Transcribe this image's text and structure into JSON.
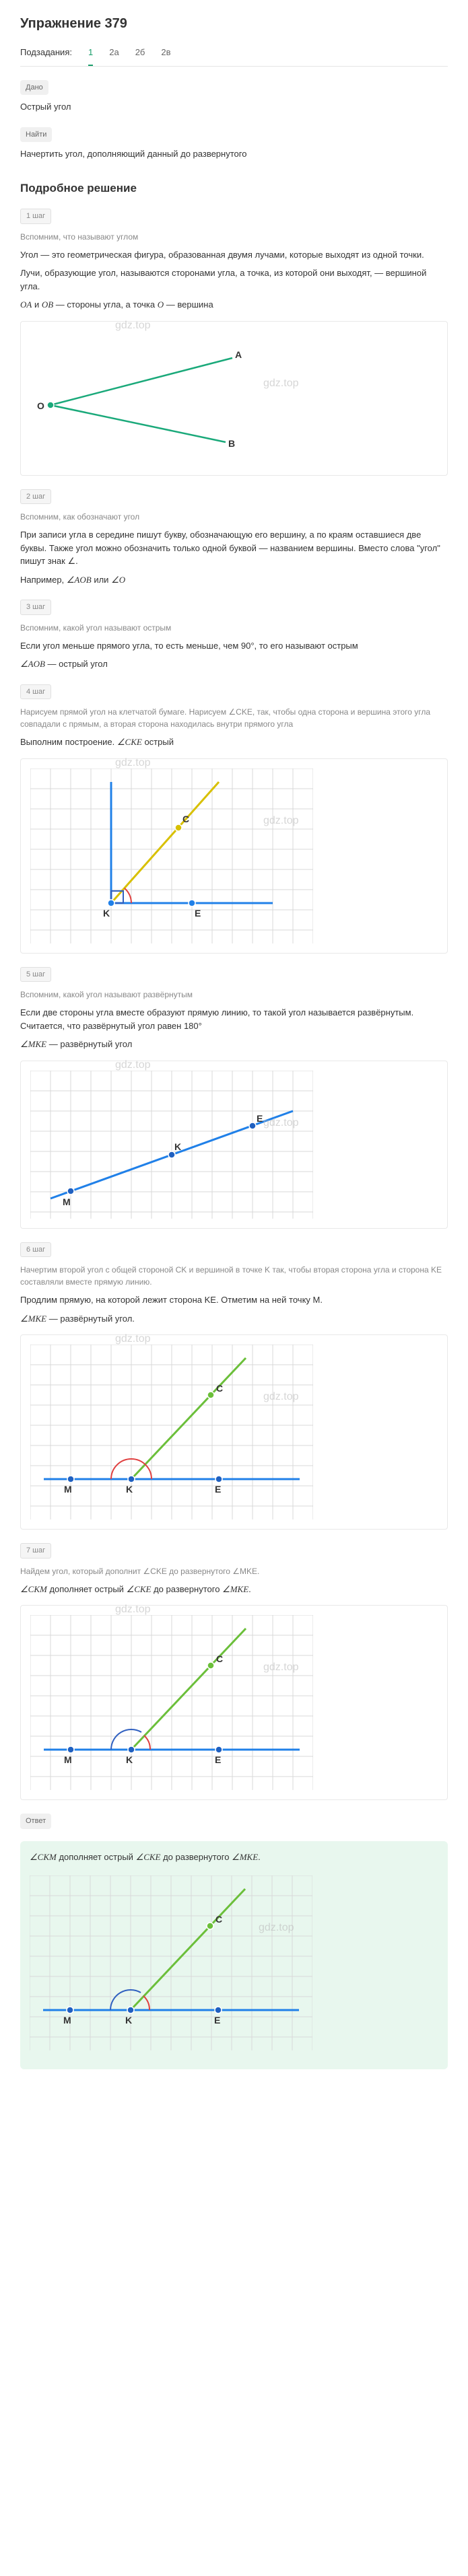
{
  "title": "Упражнение 379",
  "tabs": {
    "label": "Подзадания:",
    "items": [
      "1",
      "2а",
      "2б",
      "2в"
    ],
    "active_index": 0
  },
  "given": {
    "tag": "Дано",
    "text": "Острый угол"
  },
  "find": {
    "tag": "Найти",
    "text": "Начертить угол, дополняющий данный до развернутого"
  },
  "solution_heading": "Подробное решение",
  "steps": [
    {
      "tag": "1 шаг",
      "note": "Вспомним, что называют углом",
      "paragraphs": [
        "Угол — это геометрическая фигура, образованная двумя лучами, которые выходят из одной точки.",
        "Лучи, образующие угол, называются сторонами угла, а точка, из которой они выходят, — вершиной угла."
      ],
      "formula_html": "<span class='math'>OA</span> и <span class='math'>OB</span> — стороны угла, а точка <span class='math'>O</span> — вершина",
      "figure": "angle_oab"
    },
    {
      "tag": "2 шаг",
      "note": "Вспомним, как обозначают угол",
      "paragraphs": [
        "При записи угла в середине пишут букву, обозначающую его вершину, а по краям оставшиеся две буквы. Также угол можно обозначить только одной буквой — названием вершины. Вместо слова \"угол\" пишут знак ∠."
      ],
      "formula_html": "Например, <span class='math'>∠AOB</span> или <span class='math'>∠O</span>"
    },
    {
      "tag": "3 шаг",
      "note": "Вспомним, какой угол называют острым",
      "paragraphs": [
        "Если угол меньше прямого угла, то есть меньше, чем 90°, то его называют острым"
      ],
      "formula_html": "<span class='math'>∠AOB</span> — острый угол"
    },
    {
      "tag": "4 шаг",
      "note": "Нарисуем прямой угол на клетчатой бумаге. Нарисуем ∠CKE, так, чтобы одна сторона и вершина этого угла совпадали с прямым, а вторая сторона находилась внутри прямого угла",
      "paragraphs": [],
      "formula_html": "Выполним построение. <span class='math'>∠CKE</span> острый",
      "figure": "cke_acute"
    },
    {
      "tag": "5 шаг",
      "note": "Вспомним, какой угол называют развёрнутым",
      "paragraphs": [
        "Если две стороны угла вместе образуют прямую линию, то такой угол называется развёрнутым. Считается, что развёрнутый угол равен 180°"
      ],
      "formula_html": "<span class='math'>∠MKE</span> — развёрнутый угол",
      "figure": "mke_straight"
    },
    {
      "tag": "6 шаг",
      "note": "Начертим второй угол с общей стороной CK и вершиной в точке K так, чтобы вторая сторона угла и сторона KE составляли вместе прямую линию.",
      "paragraphs": [
        "Продлим прямую, на которой лежит сторона KE. Отметим на ней точку M."
      ],
      "formula_html": "<span class='math'>∠MKE</span> — развёрнутый угол.",
      "figure": "mke_with_c"
    },
    {
      "tag": "7 шаг",
      "note": "Найдем угол, который дополнит ∠CKE до развернутого ∠MKE.",
      "paragraphs": [],
      "formula_html": "<span class='math'>∠CKM</span> дополняет острый <span class='math'>∠CKE</span> до развернутого <span class='math'>∠MKE</span>.",
      "figure": "ckm_supplement"
    }
  ],
  "answer": {
    "tag": "Ответ",
    "formula_html": "<span class='math'>∠CKM</span> дополняет острый <span class='math'>∠CKE</span> до развернутого <span class='math'>∠MKE</span>.",
    "figure": "ckm_supplement_green"
  },
  "watermark": "gdz.top",
  "colors": {
    "teal": "#1aa97a",
    "blue": "#2080e8",
    "yellow": "#d8c000",
    "grid": "#d9d9d9",
    "grid_bold": "#bfbfbf",
    "arc_red": "#e04040",
    "arc_blue": "#3060c0",
    "green_ray": "#6bbf3a",
    "point": "#2060c0",
    "label": "#333333"
  },
  "fig_labels": {
    "O": "O",
    "A": "A",
    "B": "B",
    "C": "C",
    "K": "K",
    "E": "E",
    "M": "M"
  }
}
